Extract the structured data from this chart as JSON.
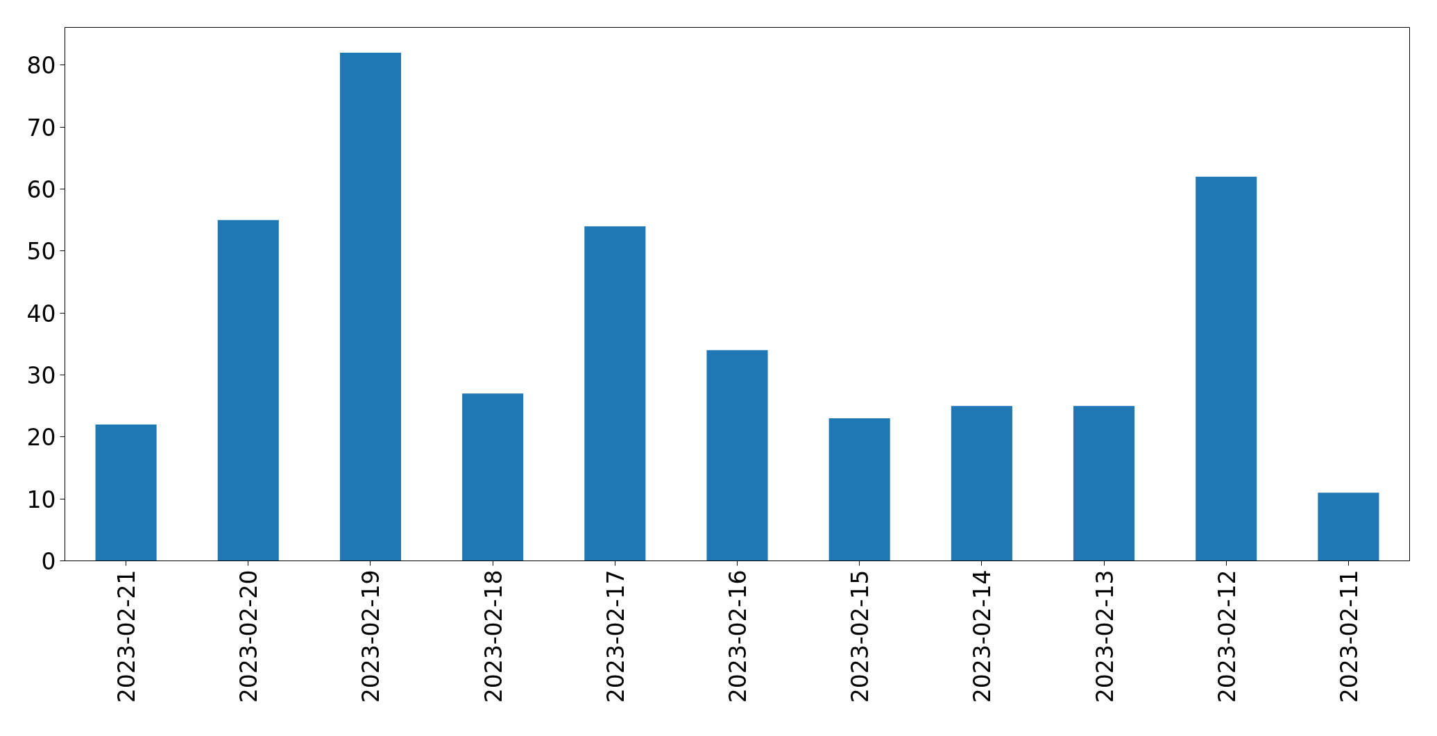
{
  "chart_data": {
    "type": "bar",
    "categories": [
      "2023-02-21",
      "2023-02-20",
      "2023-02-19",
      "2023-02-18",
      "2023-02-17",
      "2023-02-16",
      "2023-02-15",
      "2023-02-14",
      "2023-02-13",
      "2023-02-12",
      "2023-02-11"
    ],
    "values": [
      22,
      55,
      82,
      27,
      54,
      34,
      23,
      25,
      25,
      62,
      11
    ],
    "color": "#1f77b4",
    "ylim": [
      0,
      86.1
    ],
    "yticks": [
      0,
      10,
      20,
      30,
      40,
      50,
      60,
      70,
      80
    ]
  }
}
